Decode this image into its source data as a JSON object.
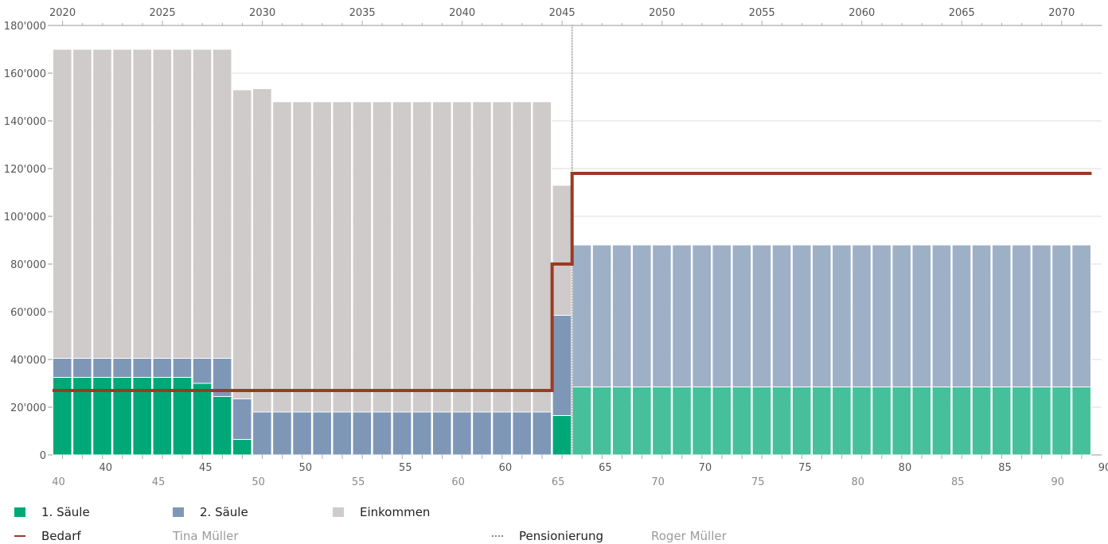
{
  "chart_data": {
    "type": "bar",
    "top_axis_years": [
      "2020",
      "2025",
      "2030",
      "2035",
      "2040",
      "2045",
      "2050",
      "2055",
      "2060",
      "2065",
      "2070"
    ],
    "y_tick_labels": [
      "0",
      "20'000",
      "40'000",
      "60'000",
      "80'000",
      "100'000",
      "120'000",
      "140'000",
      "160'000",
      "180'000"
    ],
    "ylim": [
      0,
      180000
    ],
    "bottom_axis_person1_ages": [
      "40",
      "45",
      "50",
      "55",
      "60",
      "65",
      "70",
      "75",
      "80",
      "85",
      "90"
    ],
    "bottom_axis_person2_ages": [
      "40",
      "45",
      "50",
      "55",
      "60",
      "65",
      "70",
      "75",
      "80",
      "85",
      "90"
    ],
    "years": [
      2020,
      2021,
      2022,
      2023,
      2024,
      2025,
      2026,
      2027,
      2028,
      2029,
      2030,
      2031,
      2032,
      2033,
      2034,
      2035,
      2036,
      2037,
      2038,
      2039,
      2040,
      2041,
      2042,
      2043,
      2044,
      2045,
      2046,
      2047,
      2048,
      2049,
      2050,
      2051,
      2052,
      2053,
      2054,
      2055,
      2056,
      2057,
      2058,
      2059,
      2060,
      2061,
      2062,
      2063,
      2064,
      2065,
      2066,
      2067,
      2068,
      2069,
      2070,
      2071
    ],
    "series": [
      {
        "name": "1. Säule",
        "color": "#00a878",
        "values": [
          32500,
          32500,
          32500,
          32500,
          32500,
          32500,
          32500,
          30000,
          24500,
          6500,
          0,
          0,
          0,
          0,
          0,
          0,
          0,
          0,
          0,
          0,
          0,
          0,
          0,
          0,
          0,
          16500,
          28500,
          28500,
          28500,
          28500,
          28500,
          28500,
          28500,
          28500,
          28500,
          28500,
          28500,
          28500,
          28500,
          28500,
          28500,
          28500,
          28500,
          28500,
          28500,
          28500,
          28500,
          28500,
          28500,
          28500,
          28500,
          28500
        ]
      },
      {
        "name": "2. Säule",
        "color": "#7f97b7",
        "values": [
          8000,
          8000,
          8000,
          8000,
          8000,
          8000,
          8000,
          10500,
          16000,
          17000,
          18000,
          18000,
          18000,
          18000,
          18000,
          18000,
          18000,
          18000,
          18000,
          18000,
          18000,
          18000,
          18000,
          18000,
          18000,
          42000,
          59500,
          59500,
          59500,
          59500,
          59500,
          59500,
          59500,
          59500,
          59500,
          59500,
          59500,
          59500,
          59500,
          59500,
          59500,
          59500,
          59500,
          59500,
          59500,
          59500,
          59500,
          59500,
          59500,
          59500,
          59500,
          59500
        ]
      },
      {
        "name": "Einkommen",
        "color": "#cecbca",
        "values": [
          129500,
          129500,
          129500,
          129500,
          129500,
          129500,
          129500,
          129500,
          129500,
          129500,
          135500,
          130000,
          130000,
          130000,
          130000,
          130000,
          130000,
          130000,
          130000,
          130000,
          130000,
          130000,
          130000,
          130000,
          130000,
          54500,
          0,
          0,
          0,
          0,
          0,
          0,
          0,
          0,
          0,
          0,
          0,
          0,
          0,
          0,
          0,
          0,
          0,
          0,
          0,
          0,
          0,
          0,
          0,
          0,
          0,
          0
        ]
      }
    ],
    "bedarf": {
      "name": "Bedarf",
      "color": "#9b3a24",
      "steps": [
        {
          "from": 2020,
          "to": 2045,
          "value": 27000
        },
        {
          "from": 2045,
          "to": 2046,
          "value": 80000
        },
        {
          "from": 2046,
          "to": 2072,
          "value": 118000
        }
      ]
    },
    "retirement_year": 2045.5,
    "legend": {
      "items": [
        "1. Säule",
        "2. Säule",
        "Einkommen",
        "Bedarf",
        "Tina Müller",
        "Pensionierung",
        "Roger Müller"
      ]
    }
  }
}
